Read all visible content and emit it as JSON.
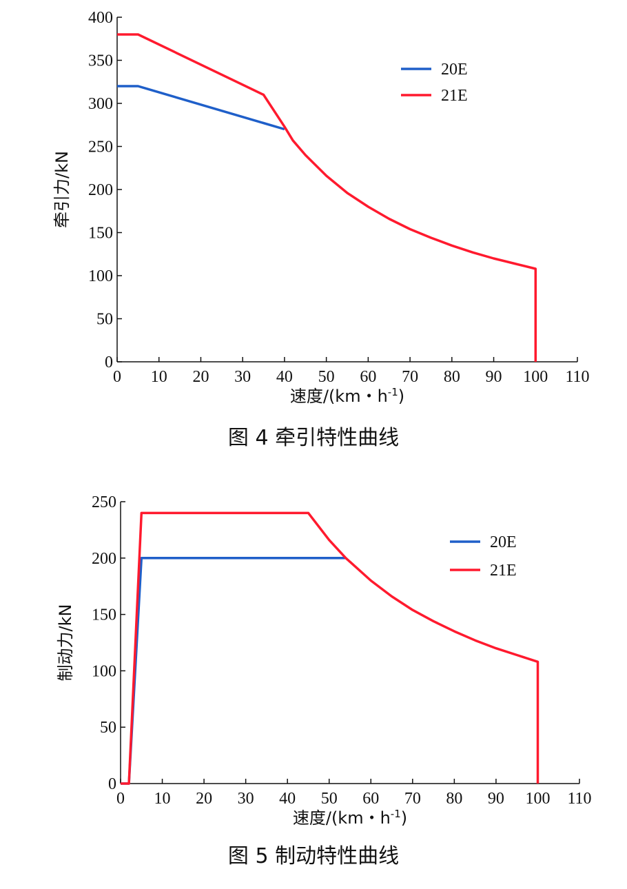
{
  "chart_data": [
    {
      "type": "line",
      "caption": "图 4    牵引特性曲线",
      "xlabel": "速度/(km・h",
      "xlabel_sup": "-1",
      "xlabel_tail": ")",
      "ylabel": "牵引力/kN",
      "xlim": [
        0,
        110
      ],
      "ylim": [
        0,
        400
      ],
      "x_ticks": [
        0,
        10,
        20,
        30,
        40,
        50,
        60,
        70,
        80,
        90,
        100,
        110
      ],
      "y_ticks": [
        0,
        50,
        100,
        150,
        200,
        250,
        300,
        350,
        400
      ],
      "grid": false,
      "legend_position": "top-right",
      "series": [
        {
          "name": "20E",
          "color": "#1f5fc9",
          "points": [
            [
              0,
              320
            ],
            [
              5,
              320
            ],
            [
              40,
              270
            ]
          ]
        },
        {
          "name": "21E",
          "color": "#ff1a2e",
          "points": [
            [
              0,
              380
            ],
            [
              5,
              380
            ],
            [
              35,
              310
            ],
            [
              40,
              273
            ],
            [
              42,
              257
            ],
            [
              45,
              240
            ],
            [
              50,
              216
            ],
            [
              55,
              196
            ],
            [
              60,
              180
            ],
            [
              65,
              166
            ],
            [
              70,
              154
            ],
            [
              75,
              144
            ],
            [
              80,
              135
            ],
            [
              85,
              127
            ],
            [
              90,
              120
            ],
            [
              95,
              114
            ],
            [
              100,
              108
            ],
            [
              100,
              0
            ]
          ]
        }
      ]
    },
    {
      "type": "line",
      "caption": "图 5    制动特性曲线",
      "xlabel": "速度/(km・h",
      "xlabel_sup": "-1",
      "xlabel_tail": ")",
      "ylabel": "制动力/kN",
      "xlim": [
        0,
        110
      ],
      "ylim": [
        0,
        250
      ],
      "x_ticks": [
        0,
        10,
        20,
        30,
        40,
        50,
        60,
        70,
        80,
        90,
        100,
        110
      ],
      "y_ticks": [
        0,
        50,
        100,
        150,
        200,
        250
      ],
      "grid": false,
      "legend_position": "top-right",
      "series": [
        {
          "name": "20E",
          "color": "#1f5fc9",
          "points": [
            [
              0,
              0
            ],
            [
              2,
              0
            ],
            [
              5,
              200
            ],
            [
              54,
              200
            ]
          ]
        },
        {
          "name": "21E",
          "color": "#ff1a2e",
          "points": [
            [
              0,
              0
            ],
            [
              2,
              0
            ],
            [
              5,
              240
            ],
            [
              45,
              240
            ],
            [
              50,
              216
            ],
            [
              54,
              200
            ],
            [
              60,
              180
            ],
            [
              65,
              166
            ],
            [
              70,
              154
            ],
            [
              75,
              144
            ],
            [
              80,
              135
            ],
            [
              85,
              127
            ],
            [
              90,
              120
            ],
            [
              95,
              114
            ],
            [
              100,
              108
            ],
            [
              100,
              0
            ]
          ]
        }
      ]
    }
  ]
}
